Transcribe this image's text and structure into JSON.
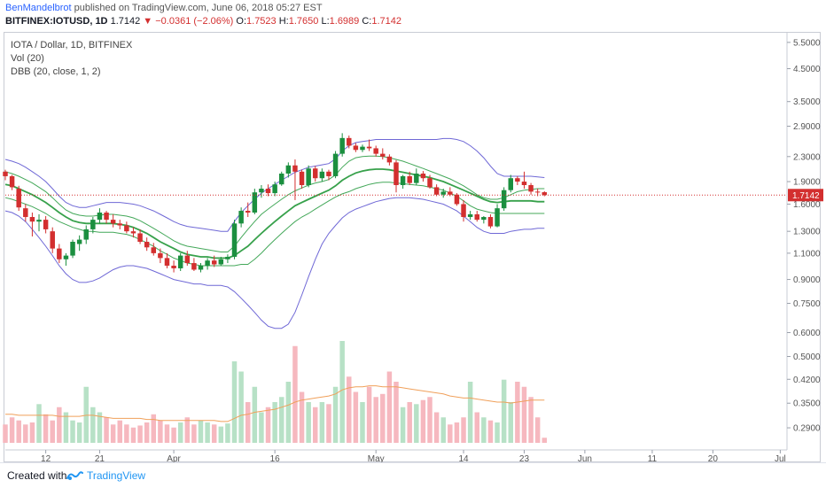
{
  "header": {
    "author": "BenMandelbrot",
    "published": "published on TradingView.com, June 06, 2018 05:27 EST",
    "symbol": "BITFINEX:IOTUSD, 1D",
    "last": "1.7142",
    "change": "−0.0361 (−2.06%)",
    "o_label": "O:",
    "o_value": "1.7523",
    "h_label": "H:",
    "h_value": "1.7650",
    "l_label": "L:",
    "l_value": "1.6989",
    "c_label": "C:",
    "c_value": "1.7142"
  },
  "legend": {
    "line1": "IOTA / Dollar, 1D, BITFINEX",
    "line2": "Vol (20)",
    "line3": "DBB (20, close, 1, 2)"
  },
  "footer": {
    "created": "Created with",
    "brand": "TradingView"
  },
  "colors": {
    "up": "#1b8f3f",
    "down": "#d32f2f",
    "upVol": "#b7e1c6",
    "downVol": "#f6b8bf",
    "outerBand": "#6f68d6",
    "innerBand": "#44a85a",
    "basis": "#37a14b",
    "volMa": "#f0a05a",
    "lastLine": "#d32f2f"
  },
  "chart_data": {
    "type": "candlestick",
    "y_scale": "log",
    "ylim": [
      0.25,
      5.8
    ],
    "y_ticks": [
      "5.5000",
      "4.5000",
      "3.5000",
      "2.9000",
      "2.3000",
      "1.9000",
      "1.6000",
      "1.3000",
      "1.1000",
      "0.9000",
      "0.7500",
      "0.6000",
      "0.5000",
      "0.4200",
      "0.3500",
      "0.2900"
    ],
    "last_price_label": "1.7142",
    "x_labels": [
      {
        "label": "12",
        "index": 6
      },
      {
        "label": "21",
        "index": 14
      },
      {
        "label": "Apr",
        "index": 25
      },
      {
        "label": "16",
        "index": 40
      },
      {
        "label": "May",
        "index": 55
      },
      {
        "label": "14",
        "index": 68
      },
      {
        "label": "23",
        "index": 77
      },
      {
        "label": "Jun",
        "index": 86
      },
      {
        "label": "11",
        "index": 96
      },
      {
        "label": "20",
        "index": 105
      },
      {
        "label": "Jul",
        "index": 115
      }
    ],
    "x_range": [
      0,
      116
    ],
    "candles": [
      [
        2.05,
        2.08,
        1.92,
        1.98
      ],
      [
        1.98,
        2.0,
        1.78,
        1.82
      ],
      [
        1.8,
        1.84,
        1.52,
        1.56
      ],
      [
        1.55,
        1.6,
        1.4,
        1.45
      ],
      [
        1.45,
        1.5,
        1.25,
        1.4
      ],
      [
        1.4,
        1.48,
        1.3,
        1.42
      ],
      [
        1.42,
        1.46,
        1.28,
        1.32
      ],
      [
        1.3,
        1.34,
        1.1,
        1.14
      ],
      [
        1.14,
        1.18,
        1.02,
        1.05
      ],
      [
        1.05,
        1.1,
        1.0,
        1.08
      ],
      [
        1.08,
        1.22,
        1.06,
        1.2
      ],
      [
        1.18,
        1.26,
        1.12,
        1.22
      ],
      [
        1.22,
        1.36,
        1.18,
        1.32
      ],
      [
        1.32,
        1.45,
        1.28,
        1.42
      ],
      [
        1.42,
        1.55,
        1.38,
        1.5
      ],
      [
        1.5,
        1.52,
        1.38,
        1.42
      ],
      [
        1.42,
        1.48,
        1.34,
        1.38
      ],
      [
        1.38,
        1.42,
        1.32,
        1.36
      ],
      [
        1.36,
        1.4,
        1.28,
        1.3
      ],
      [
        1.3,
        1.34,
        1.24,
        1.28
      ],
      [
        1.28,
        1.32,
        1.18,
        1.2
      ],
      [
        1.2,
        1.24,
        1.12,
        1.15
      ],
      [
        1.15,
        1.19,
        1.08,
        1.1
      ],
      [
        1.1,
        1.14,
        1.02,
        1.06
      ],
      [
        1.06,
        1.1,
        0.98,
        1.0
      ],
      [
        1.0,
        1.04,
        0.95,
        0.98
      ],
      [
        0.98,
        1.1,
        0.96,
        1.08
      ],
      [
        1.08,
        1.12,
        1.0,
        1.02
      ],
      [
        1.02,
        1.06,
        0.96,
        0.97
      ],
      [
        0.97,
        1.02,
        0.95,
        1.0
      ],
      [
        1.0,
        1.06,
        0.97,
        1.04
      ],
      [
        1.04,
        1.08,
        0.99,
        1.01
      ],
      [
        1.01,
        1.07,
        1.0,
        1.05
      ],
      [
        1.05,
        1.09,
        1.02,
        1.07
      ],
      [
        1.07,
        1.42,
        1.05,
        1.38
      ],
      [
        1.38,
        1.56,
        1.34,
        1.52
      ],
      [
        1.52,
        1.62,
        1.45,
        1.5
      ],
      [
        1.5,
        1.8,
        1.48,
        1.75
      ],
      [
        1.75,
        1.85,
        1.68,
        1.8
      ],
      [
        1.8,
        1.86,
        1.7,
        1.74
      ],
      [
        1.74,
        1.9,
        1.7,
        1.86
      ],
      [
        1.86,
        2.05,
        1.84,
        2.02
      ],
      [
        2.02,
        2.2,
        1.96,
        2.15
      ],
      [
        2.15,
        2.25,
        1.65,
        2.05
      ],
      [
        2.05,
        2.08,
        1.8,
        1.85
      ],
      [
        1.85,
        2.15,
        1.82,
        2.1
      ],
      [
        2.1,
        2.14,
        1.9,
        1.95
      ],
      [
        1.95,
        2.1,
        1.9,
        2.05
      ],
      [
        2.05,
        2.08,
        1.92,
        1.98
      ],
      [
        1.98,
        2.4,
        1.95,
        2.35
      ],
      [
        2.35,
        2.75,
        2.3,
        2.65
      ],
      [
        2.65,
        2.7,
        2.45,
        2.5
      ],
      [
        2.5,
        2.55,
        2.38,
        2.42
      ],
      [
        2.42,
        2.52,
        2.38,
        2.48
      ],
      [
        2.48,
        2.62,
        2.4,
        2.45
      ],
      [
        2.45,
        2.5,
        2.3,
        2.35
      ],
      [
        2.35,
        2.45,
        2.25,
        2.3
      ],
      [
        2.3,
        2.34,
        2.15,
        2.2
      ],
      [
        2.2,
        2.24,
        1.75,
        1.85
      ],
      [
        1.85,
        2.0,
        1.8,
        1.98
      ],
      [
        1.98,
        2.05,
        1.85,
        1.88
      ],
      [
        1.88,
        2.1,
        1.85,
        2.02
      ],
      [
        2.02,
        2.06,
        1.9,
        1.95
      ],
      [
        1.95,
        2.0,
        1.8,
        1.82
      ],
      [
        1.82,
        1.86,
        1.7,
        1.72
      ],
      [
        1.72,
        1.8,
        1.68,
        1.76
      ],
      [
        1.76,
        1.82,
        1.7,
        1.72
      ],
      [
        1.72,
        1.74,
        1.58,
        1.6
      ],
      [
        1.6,
        1.65,
        1.4,
        1.45
      ],
      [
        1.45,
        1.52,
        1.42,
        1.48
      ],
      [
        1.48,
        1.52,
        1.4,
        1.42
      ],
      [
        1.42,
        1.46,
        1.38,
        1.45
      ],
      [
        1.45,
        1.48,
        1.33,
        1.35
      ],
      [
        1.35,
        1.6,
        1.34,
        1.55
      ],
      [
        1.55,
        1.82,
        1.52,
        1.78
      ],
      [
        1.78,
        2.0,
        1.75,
        1.95
      ],
      [
        1.95,
        1.98,
        1.85,
        1.9
      ],
      [
        1.9,
        2.05,
        1.8,
        1.85
      ],
      [
        1.85,
        1.88,
        1.72,
        1.76
      ],
      [
        1.76,
        1.8,
        1.7,
        1.75
      ],
      [
        1.7523,
        1.765,
        1.6989,
        1.7142
      ]
    ],
    "candle_index_map": [
      0,
      1,
      3,
      4,
      5,
      6,
      8,
      9,
      10,
      11,
      12,
      13,
      14,
      15,
      16,
      17,
      18,
      19,
      20,
      21,
      22,
      23,
      24,
      25,
      26,
      27,
      28,
      29,
      30,
      31,
      32,
      33,
      34,
      35,
      36,
      37,
      38,
      39,
      40,
      41,
      42,
      43,
      44,
      45,
      46,
      47,
      48,
      49,
      50,
      51,
      52,
      53,
      54,
      55,
      56,
      57,
      58,
      59,
      60,
      61,
      62,
      63,
      64,
      65,
      66,
      67,
      68,
      69,
      70,
      71,
      72,
      73,
      74,
      75,
      76,
      77,
      78,
      79,
      80,
      81,
      82
    ],
    "bands": {
      "upper2": [
        2.25,
        2.22,
        2.18,
        2.12,
        2.05,
        1.98,
        1.9,
        1.8,
        1.7,
        1.62,
        1.58,
        1.56,
        1.56,
        1.58,
        1.6,
        1.62,
        1.62,
        1.62,
        1.61,
        1.6,
        1.58,
        1.55,
        1.52,
        1.48,
        1.44,
        1.4,
        1.37,
        1.35,
        1.34,
        1.33,
        1.32,
        1.31,
        1.3,
        1.3,
        1.4,
        1.5,
        1.58,
        1.66,
        1.74,
        1.8,
        1.86,
        1.92,
        1.98,
        2.04,
        2.08,
        2.12,
        2.14,
        2.16,
        2.18,
        2.26,
        2.4,
        2.5,
        2.56,
        2.58,
        2.6,
        2.62,
        2.62,
        2.62,
        2.62,
        2.62,
        2.62,
        2.62,
        2.62,
        2.62,
        2.62,
        2.64,
        2.64,
        2.62,
        2.58,
        2.5,
        2.4,
        2.28,
        2.14,
        2.02,
        1.98,
        1.98,
        1.98,
        1.98,
        1.98,
        1.97,
        1.96
      ],
      "upper1": [
        2.05,
        2.02,
        1.98,
        1.93,
        1.88,
        1.82,
        1.76,
        1.68,
        1.6,
        1.53,
        1.49,
        1.47,
        1.46,
        1.46,
        1.47,
        1.48,
        1.48,
        1.47,
        1.46,
        1.44,
        1.41,
        1.37,
        1.33,
        1.29,
        1.25,
        1.21,
        1.18,
        1.16,
        1.15,
        1.14,
        1.13,
        1.12,
        1.11,
        1.11,
        1.16,
        1.24,
        1.32,
        1.4,
        1.48,
        1.54,
        1.6,
        1.66,
        1.72,
        1.77,
        1.81,
        1.85,
        1.88,
        1.9,
        1.93,
        2.0,
        2.12,
        2.22,
        2.28,
        2.3,
        2.31,
        2.31,
        2.3,
        2.28,
        2.25,
        2.22,
        2.18,
        2.14,
        2.1,
        2.06,
        2.02,
        1.98,
        1.94,
        1.89,
        1.84,
        1.78,
        1.72,
        1.68,
        1.66,
        1.66,
        1.68,
        1.72,
        1.76,
        1.78,
        1.79,
        1.8,
        1.8
      ],
      "basis": [
        1.86,
        1.84,
        1.8,
        1.76,
        1.72,
        1.67,
        1.62,
        1.56,
        1.5,
        1.45,
        1.41,
        1.39,
        1.38,
        1.38,
        1.38,
        1.38,
        1.38,
        1.37,
        1.36,
        1.34,
        1.31,
        1.28,
        1.24,
        1.2,
        1.17,
        1.14,
        1.11,
        1.09,
        1.08,
        1.07,
        1.07,
        1.06,
        1.06,
        1.06,
        1.08,
        1.12,
        1.16,
        1.22,
        1.28,
        1.34,
        1.4,
        1.46,
        1.52,
        1.58,
        1.62,
        1.66,
        1.7,
        1.74,
        1.78,
        1.84,
        1.92,
        1.98,
        2.03,
        2.06,
        2.08,
        2.09,
        2.09,
        2.08,
        2.06,
        2.04,
        2.02,
        2.0,
        1.98,
        1.96,
        1.93,
        1.9,
        1.86,
        1.82,
        1.78,
        1.74,
        1.7,
        1.66,
        1.63,
        1.62,
        1.63,
        1.64,
        1.64,
        1.64,
        1.64,
        1.63,
        1.63
      ],
      "lower1": [
        1.68,
        1.66,
        1.63,
        1.6,
        1.57,
        1.53,
        1.49,
        1.44,
        1.4,
        1.37,
        1.34,
        1.32,
        1.3,
        1.3,
        1.29,
        1.29,
        1.29,
        1.28,
        1.27,
        1.25,
        1.22,
        1.19,
        1.16,
        1.12,
        1.09,
        1.06,
        1.04,
        1.02,
        1.01,
        1.0,
        1.0,
        1.0,
        1.0,
        1.0,
        1.0,
        1.01,
        1.01,
        1.05,
        1.1,
        1.16,
        1.22,
        1.28,
        1.34,
        1.4,
        1.45,
        1.49,
        1.54,
        1.59,
        1.64,
        1.69,
        1.73,
        1.76,
        1.8,
        1.83,
        1.86,
        1.88,
        1.89,
        1.89,
        1.88,
        1.87,
        1.86,
        1.85,
        1.84,
        1.82,
        1.8,
        1.78,
        1.74,
        1.7,
        1.64,
        1.58,
        1.54,
        1.52,
        1.5,
        1.49,
        1.49,
        1.49,
        1.49,
        1.49,
        1.49,
        1.49,
        1.49
      ],
      "lower2": [
        1.52,
        1.5,
        1.46,
        1.4,
        1.32,
        1.24,
        1.16,
        1.08,
        1.0,
        0.94,
        0.9,
        0.88,
        0.88,
        0.89,
        0.91,
        0.94,
        0.97,
        0.99,
        1.0,
        1.0,
        0.99,
        0.98,
        0.96,
        0.94,
        0.92,
        0.9,
        0.89,
        0.88,
        0.87,
        0.87,
        0.86,
        0.86,
        0.86,
        0.85,
        0.82,
        0.78,
        0.74,
        0.7,
        0.66,
        0.63,
        0.62,
        0.62,
        0.64,
        0.7,
        0.8,
        0.92,
        1.05,
        1.18,
        1.28,
        1.36,
        1.44,
        1.5,
        1.54,
        1.57,
        1.6,
        1.63,
        1.65,
        1.67,
        1.68,
        1.68,
        1.68,
        1.67,
        1.66,
        1.64,
        1.62,
        1.6,
        1.56,
        1.52,
        1.46,
        1.4,
        1.34,
        1.3,
        1.28,
        1.28,
        1.28,
        1.3,
        1.31,
        1.32,
        1.32,
        1.33,
        1.33
      ]
    },
    "volume": [
      0.18,
      0.25,
      0.22,
      0.18,
      0.2,
      0.38,
      0.28,
      0.22,
      0.35,
      0.3,
      0.22,
      0.2,
      0.55,
      0.35,
      0.3,
      0.25,
      0.18,
      0.22,
      0.18,
      0.15,
      0.17,
      0.2,
      0.28,
      0.22,
      0.18,
      0.15,
      0.2,
      0.25,
      0.18,
      0.22,
      0.2,
      0.18,
      0.16,
      0.19,
      0.8,
      0.7,
      0.4,
      0.55,
      0.3,
      0.35,
      0.4,
      0.45,
      0.6,
      0.95,
      0.5,
      0.4,
      0.35,
      0.4,
      0.38,
      0.55,
      1.0,
      0.65,
      0.5,
      0.4,
      0.55,
      0.45,
      0.48,
      0.7,
      0.6,
      0.35,
      0.4,
      0.38,
      0.42,
      0.45,
      0.3,
      0.25,
      0.18,
      0.2,
      0.25,
      0.6,
      0.3,
      0.25,
      0.22,
      0.2,
      0.62,
      0.4,
      0.6,
      0.55,
      0.45,
      0.25,
      0.05
    ],
    "volume_ma": [
      0.28,
      0.28,
      0.27,
      0.27,
      0.27,
      0.27,
      0.27,
      0.27,
      0.26,
      0.26,
      0.26,
      0.26,
      0.27,
      0.27,
      0.26,
      0.25,
      0.24,
      0.24,
      0.24,
      0.24,
      0.24,
      0.23,
      0.23,
      0.22,
      0.22,
      0.22,
      0.22,
      0.22,
      0.22,
      0.22,
      0.22,
      0.22,
      0.21,
      0.21,
      0.24,
      0.27,
      0.28,
      0.3,
      0.31,
      0.32,
      0.33,
      0.35,
      0.37,
      0.4,
      0.42,
      0.43,
      0.44,
      0.45,
      0.46,
      0.48,
      0.52,
      0.54,
      0.55,
      0.55,
      0.56,
      0.56,
      0.55,
      0.55,
      0.55,
      0.54,
      0.53,
      0.52,
      0.51,
      0.5,
      0.49,
      0.48,
      0.46,
      0.45,
      0.44,
      0.44,
      0.43,
      0.42,
      0.41,
      0.4,
      0.4,
      0.39,
      0.4,
      0.41,
      0.42,
      0.42,
      0.42
    ]
  }
}
